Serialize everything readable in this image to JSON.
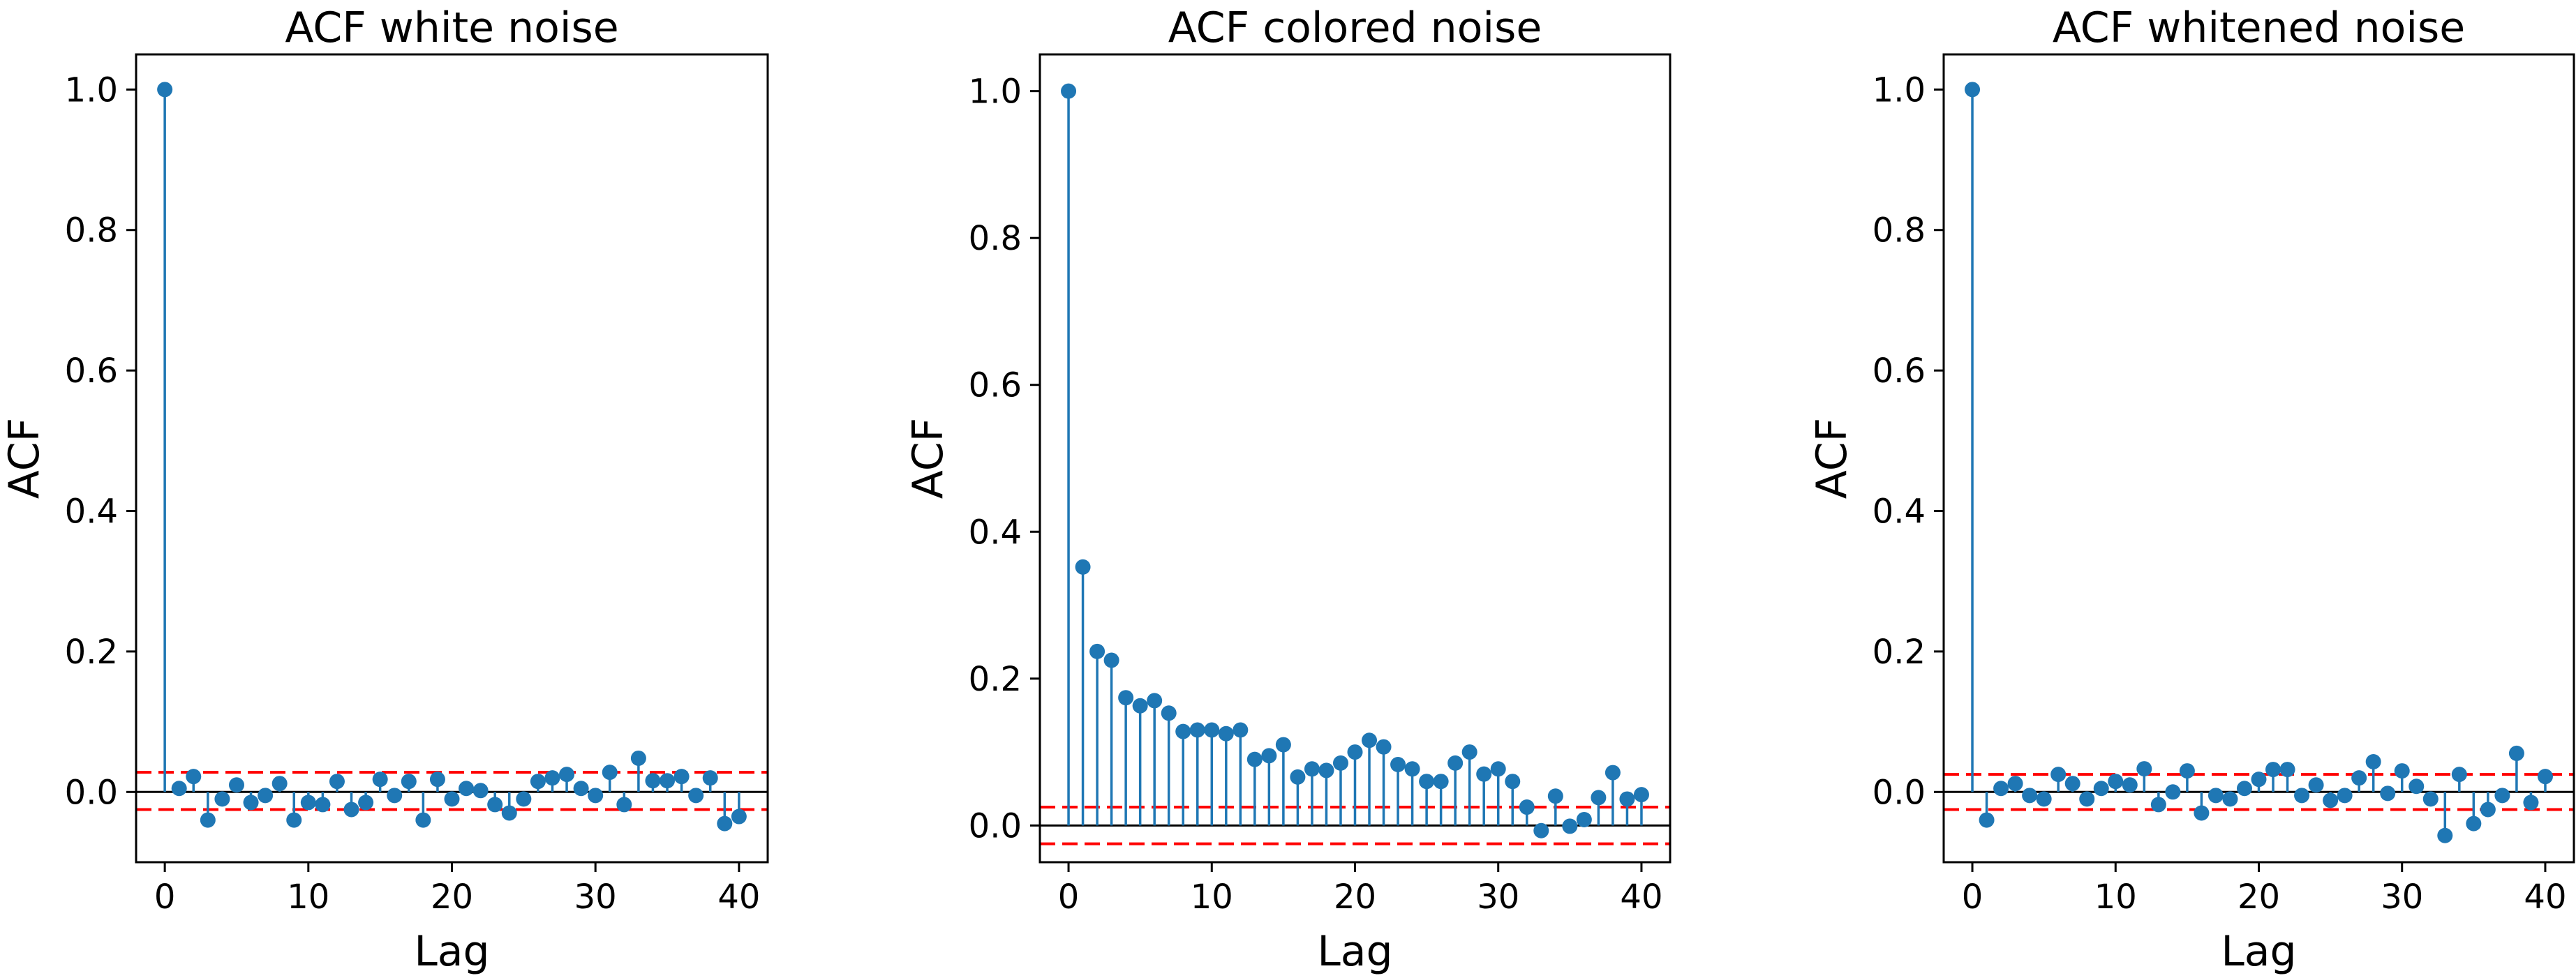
{
  "colors": {
    "stem": "#1f77b4",
    "marker": "#1f77b4",
    "baseline": "#000000",
    "confidence": "#ff0000",
    "axes": "#000000"
  },
  "chart_data": [
    {
      "type": "stem",
      "title": "ACF white noise",
      "xlabel": "Lag",
      "ylabel": "ACF",
      "xlim": [
        -2,
        42
      ],
      "ylim": [
        -0.1,
        1.05
      ],
      "xticks": [
        0,
        10,
        20,
        30,
        40
      ],
      "xtick_labels": [
        "0",
        "10",
        "20",
        "30",
        "40"
      ],
      "yticks": [
        0.0,
        0.2,
        0.4,
        0.6,
        0.8,
        1.0
      ],
      "ytick_labels": [
        "0.0",
        "0.2",
        "0.4",
        "0.6",
        "0.8",
        "1.0"
      ],
      "confidence_bounds": [
        0.028,
        -0.025
      ],
      "x": [
        0,
        1,
        2,
        3,
        4,
        5,
        6,
        7,
        8,
        9,
        10,
        11,
        12,
        13,
        14,
        15,
        16,
        17,
        18,
        19,
        20,
        21,
        22,
        23,
        24,
        25,
        26,
        27,
        28,
        29,
        30,
        31,
        32,
        33,
        34,
        35,
        36,
        37,
        38,
        39,
        40
      ],
      "values": [
        1.0,
        0.005,
        0.022,
        -0.04,
        -0.01,
        0.01,
        -0.015,
        -0.005,
        0.012,
        -0.04,
        -0.015,
        -0.018,
        0.015,
        -0.025,
        -0.015,
        0.018,
        -0.005,
        0.015,
        -0.04,
        0.018,
        -0.01,
        0.005,
        0.002,
        -0.018,
        -0.03,
        -0.01,
        0.015,
        0.02,
        0.025,
        0.005,
        -0.005,
        0.028,
        -0.018,
        0.048,
        0.016,
        0.016,
        0.022,
        -0.005,
        0.02,
        -0.045,
        -0.035
      ]
    },
    {
      "type": "stem",
      "title": "ACF colored noise",
      "xlabel": "Lag",
      "ylabel": "ACF",
      "xlim": [
        -2,
        42
      ],
      "ylim": [
        -0.05,
        1.05
      ],
      "xticks": [
        0,
        10,
        20,
        30,
        40
      ],
      "xtick_labels": [
        "0",
        "10",
        "20",
        "30",
        "40"
      ],
      "yticks": [
        0.0,
        0.2,
        0.4,
        0.6,
        0.8,
        1.0
      ],
      "ytick_labels": [
        "0.0",
        "0.2",
        "0.4",
        "0.6",
        "0.8",
        "1.0"
      ],
      "confidence_bounds": [
        0.025,
        -0.025
      ],
      "x": [
        0,
        1,
        2,
        3,
        4,
        5,
        6,
        7,
        8,
        9,
        10,
        11,
        12,
        13,
        14,
        15,
        16,
        17,
        18,
        19,
        20,
        21,
        22,
        23,
        24,
        25,
        26,
        27,
        28,
        29,
        30,
        31,
        32,
        33,
        34,
        35,
        36,
        37,
        38,
        39,
        40
      ],
      "values": [
        1.0,
        0.352,
        0.237,
        0.225,
        0.174,
        0.163,
        0.17,
        0.153,
        0.128,
        0.13,
        0.13,
        0.125,
        0.13,
        0.09,
        0.095,
        0.11,
        0.066,
        0.077,
        0.075,
        0.085,
        0.1,
        0.116,
        0.107,
        0.083,
        0.077,
        0.06,
        0.06,
        0.085,
        0.1,
        0.07,
        0.077,
        0.06,
        0.025,
        -0.007,
        0.04,
        -0.001,
        0.008,
        0.038,
        0.072,
        0.036,
        0.042
      ]
    },
    {
      "type": "stem",
      "title": "ACF whitened noise",
      "xlabel": "Lag",
      "ylabel": "ACF",
      "xlim": [
        -2,
        42
      ],
      "ylim": [
        -0.1,
        1.05
      ],
      "xticks": [
        0,
        10,
        20,
        30,
        40
      ],
      "xtick_labels": [
        "0",
        "10",
        "20",
        "30",
        "40"
      ],
      "yticks": [
        0.0,
        0.2,
        0.4,
        0.6,
        0.8,
        1.0
      ],
      "ytick_labels": [
        "0.0",
        "0.2",
        "0.4",
        "0.6",
        "0.8",
        "1.0"
      ],
      "confidence_bounds": [
        0.025,
        -0.025
      ],
      "x": [
        0,
        1,
        2,
        3,
        4,
        5,
        6,
        7,
        8,
        9,
        10,
        11,
        12,
        13,
        14,
        15,
        16,
        17,
        18,
        19,
        20,
        21,
        22,
        23,
        24,
        25,
        26,
        27,
        28,
        29,
        30,
        31,
        32,
        33,
        34,
        35,
        36,
        37,
        38,
        39,
        40
      ],
      "values": [
        1.0,
        -0.04,
        0.005,
        0.012,
        -0.005,
        -0.01,
        0.025,
        0.012,
        -0.01,
        0.005,
        0.015,
        0.01,
        0.033,
        -0.018,
        0.0,
        0.03,
        -0.03,
        -0.005,
        -0.01,
        0.005,
        0.018,
        0.032,
        0.032,
        -0.005,
        0.01,
        -0.012,
        -0.005,
        0.02,
        0.043,
        -0.002,
        0.03,
        0.008,
        -0.01,
        -0.062,
        0.025,
        -0.045,
        -0.025,
        -0.005,
        0.055,
        -0.015,
        0.022
      ]
    }
  ]
}
